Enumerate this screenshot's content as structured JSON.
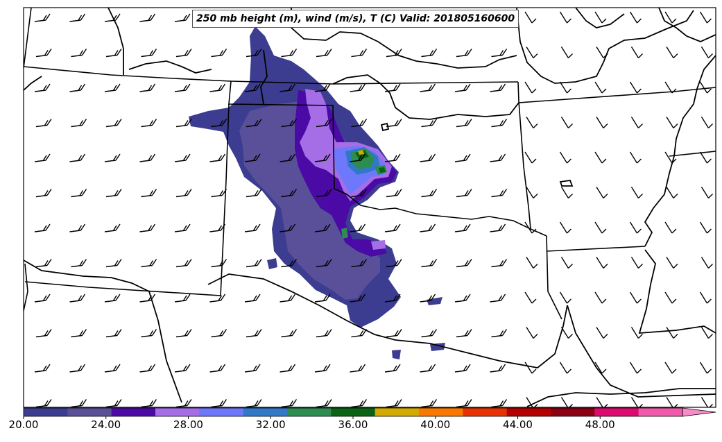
{
  "title": "250 mb height (m), wind (m/s), T (C) Valid: 201805160600",
  "colorbar": {
    "ticks": [
      "20.00",
      "24.00",
      "28.00",
      "32.00",
      "36.00",
      "40.00",
      "44.00",
      "48.00"
    ],
    "range": [
      20,
      52
    ],
    "extend": "max",
    "colors": [
      "#3c3c91",
      "#5a5099",
      "#4b0aa5",
      "#a56ee6",
      "#6e78fa",
      "#3278c8",
      "#2d8c50",
      "#0a6414",
      "#d2aa00",
      "#fa7800",
      "#e63200",
      "#b40000",
      "#8c0014",
      "#dc0a6e",
      "#f05aaa",
      "#f58cc8"
    ]
  },
  "map": {
    "region": "Southern Plains (TX Panhandle, OK, NM, AR, LA)",
    "state_boundaries": true,
    "wind_barbs": true,
    "shaded_field": "250 mb temperature"
  }
}
